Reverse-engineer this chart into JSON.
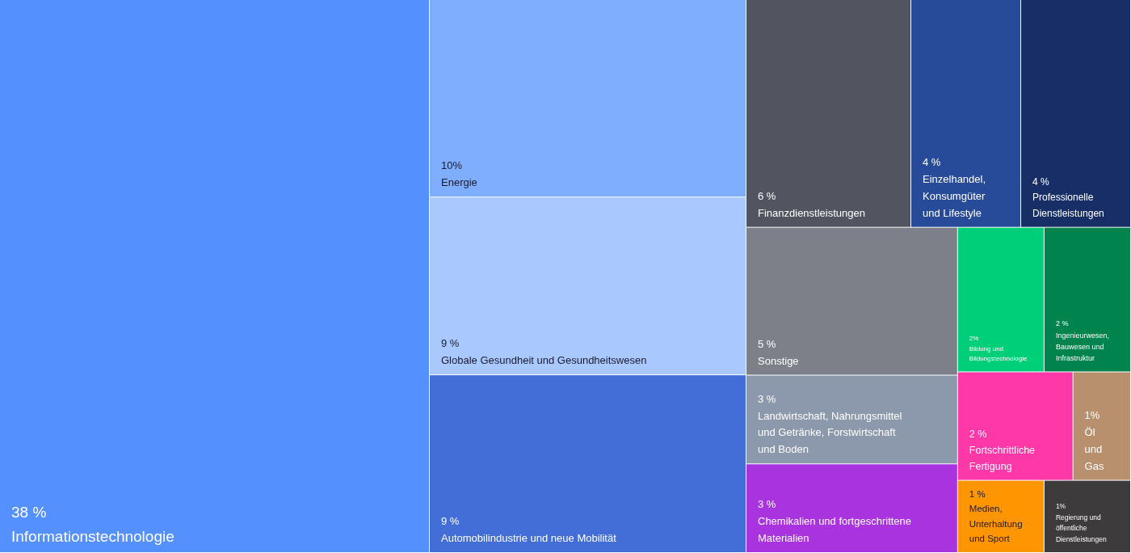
{
  "chart_data": {
    "type": "other",
    "categories": [
      "Informationstechnologie",
      "Energie",
      "Globale Gesundheit und Gesundheitswesen",
      "Automobilindustrie und neue Mobilität",
      "Finanzdienstleistungen",
      "Einzelhandel, Konsumgüter und Lifestyle",
      "Professionelle Dienstleistungen",
      "Sonstige",
      "Landwirtschaft, Nahrungsmittel und Getränke, Forstwirtschaft und Boden",
      "Chemikalien und fortgeschrittene Materialien",
      "Bildung und Bildungstechnologie",
      "Ingenieurwesen, Bauwesen und Infrastruktur",
      "Fortschrittliche Fertigung",
      "Öl und Gas",
      "Medien, Unterhaltung und Sport",
      "Regierung und öffentliche Dienstleistungen"
    ],
    "values": [
      38,
      10,
      9,
      9,
      6,
      4,
      4,
      5,
      3,
      3,
      2,
      2,
      2,
      1,
      1,
      1
    ],
    "value_labels": [
      "38 %",
      "10%",
      "9 %",
      "9 %",
      "6 %",
      "4 %",
      "4 %",
      "5 %",
      "3 %",
      "3 %",
      "2%",
      "2 %",
      "2 %",
      "1%",
      "1 %",
      "1%"
    ],
    "colors": [
      "#5591fe",
      "#7faefe",
      "#a9c8fe",
      "#436ed8",
      "#52555f",
      "#274a99",
      "#172e66",
      "#7d8089",
      "#8c98ab",
      "#aa33e0",
      "#00cf7a",
      "#00834c",
      "#ff38a8",
      "#b8906d",
      "#ff9500",
      "#3d3b3b"
    ]
  }
}
